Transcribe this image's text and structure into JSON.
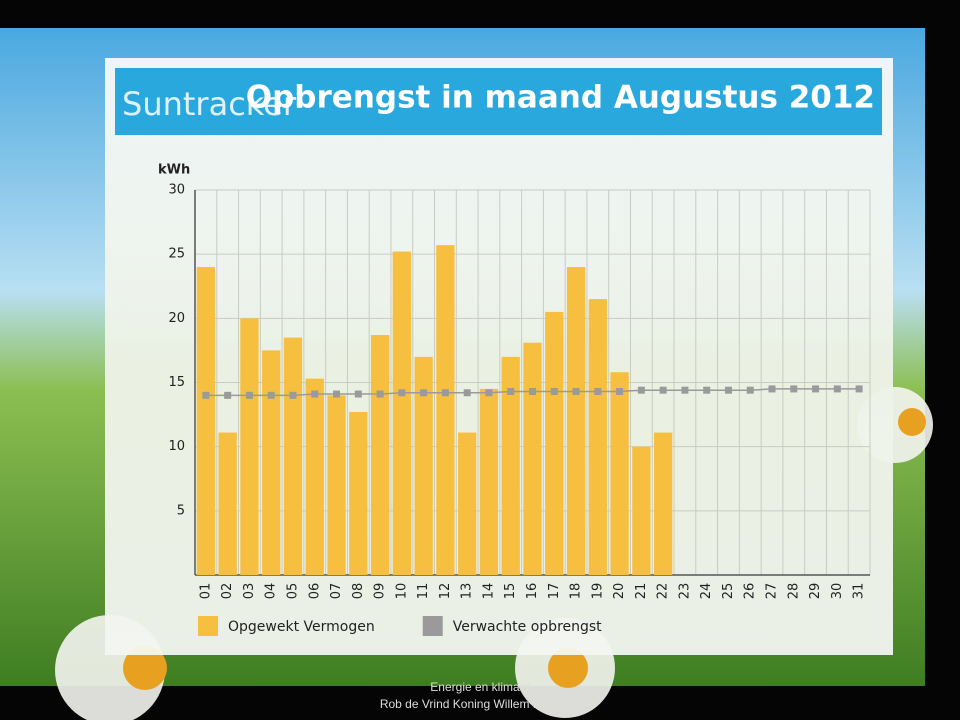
{
  "chart_data": {
    "type": "bar",
    "title": "Opbrengst in maand Augustus 2012",
    "brand": "Suntracker",
    "y_label": "kWh",
    "categories": [
      "01",
      "02",
      "03",
      "04",
      "05",
      "06",
      "07",
      "08",
      "09",
      "10",
      "11",
      "12",
      "13",
      "14",
      "15",
      "16",
      "17",
      "18",
      "19",
      "20",
      "21",
      "22",
      "23",
      "24",
      "25",
      "26",
      "27",
      "28",
      "29",
      "30",
      "31"
    ],
    "series": [
      {
        "name": "Opgewekt Vermogen",
        "color": "#f6bf3f",
        "type": "bar",
        "values": [
          24,
          11.1,
          20,
          17.5,
          18.5,
          15.3,
          14,
          12.7,
          18.7,
          25.2,
          17,
          25.7,
          11.1,
          14.5,
          17,
          18.1,
          20.5,
          24,
          21.5,
          15.8,
          10,
          11.1,
          null,
          null,
          null,
          null,
          null,
          null,
          null,
          null,
          null
        ]
      },
      {
        "name": "Verwachte opbrengst",
        "color": "#9a9a9a",
        "type": "line",
        "values": [
          14.0,
          14.0,
          14.0,
          14.0,
          14.0,
          14.1,
          14.1,
          14.1,
          14.1,
          14.2,
          14.2,
          14.2,
          14.2,
          14.2,
          14.3,
          14.3,
          14.3,
          14.3,
          14.3,
          14.3,
          14.4,
          14.4,
          14.4,
          14.4,
          14.4,
          14.4,
          14.5,
          14.5,
          14.5,
          14.5,
          14.5
        ]
      }
    ],
    "ylim": [
      0,
      30
    ],
    "yticks": [
      5,
      10,
      15,
      20,
      25,
      30
    ],
    "grid": true,
    "legend": "bottom"
  },
  "footer": {
    "line1": "Energie en klimaat",
    "line2": "Rob de Vrind Koning Willem I College"
  }
}
